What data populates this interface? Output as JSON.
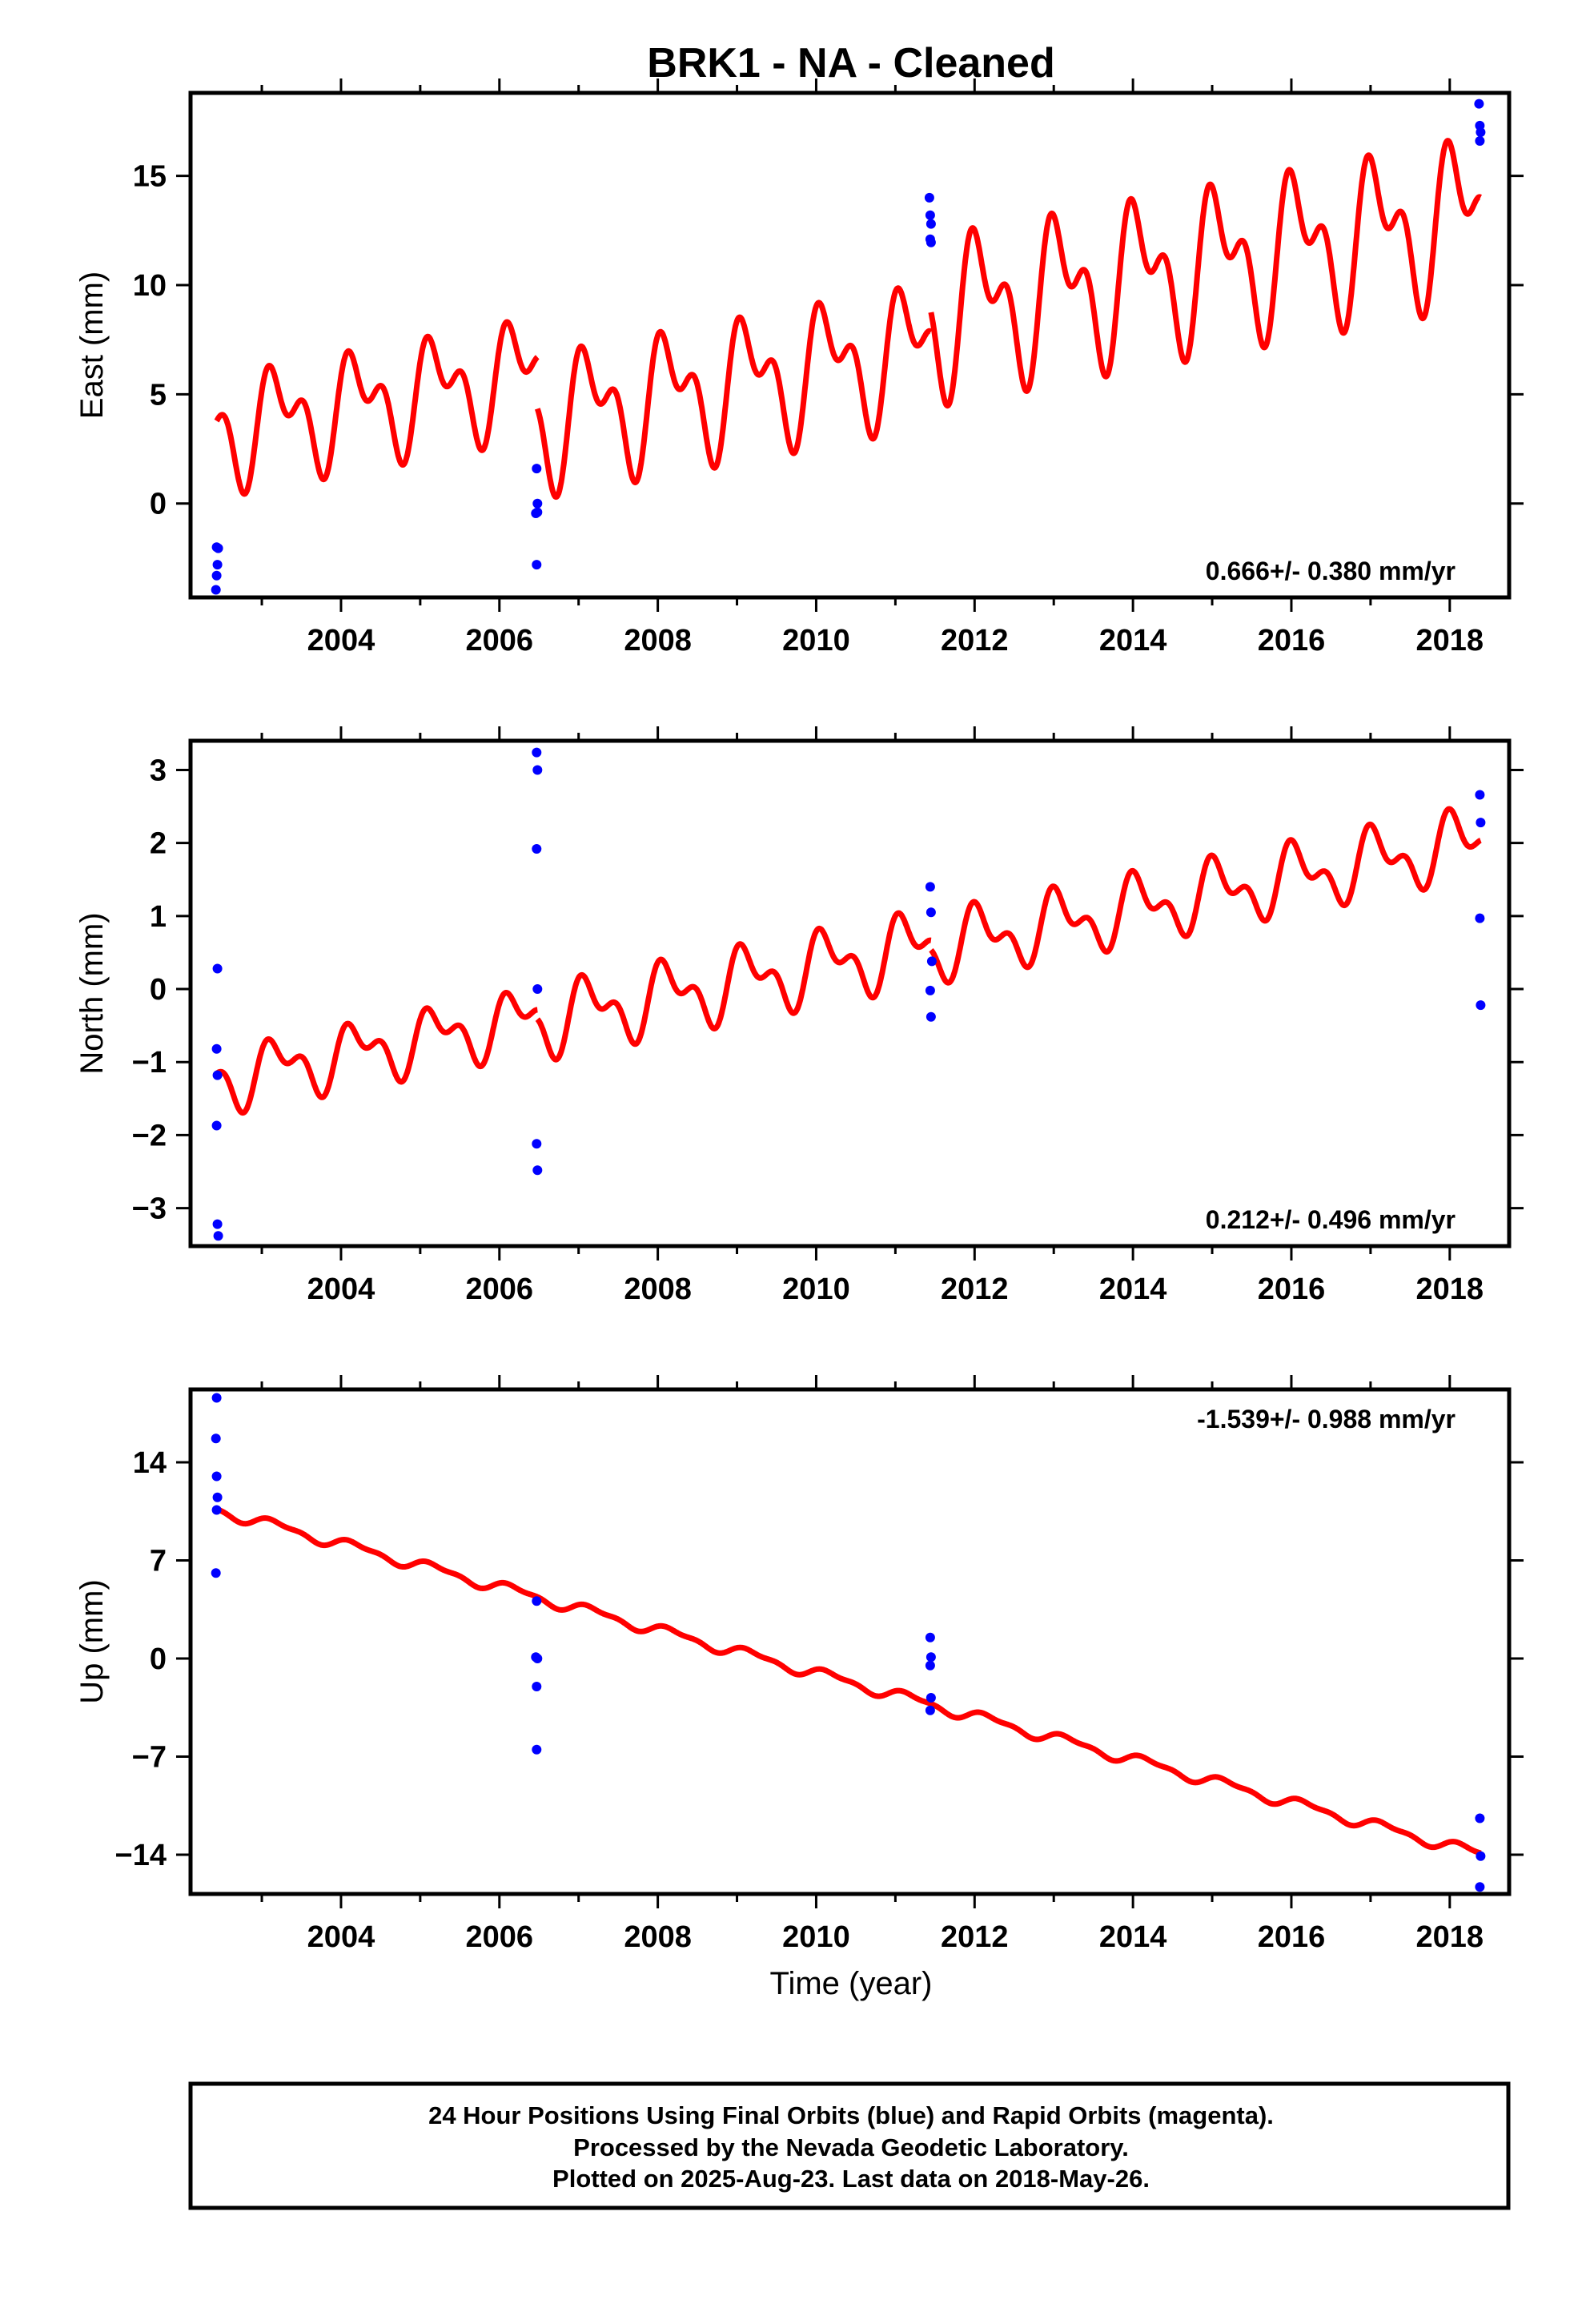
{
  "title": "BRK1  - NA - Cleaned",
  "xlabel": "Time (year)",
  "footer_lines": [
    "24 Hour Positions Using Final Orbits (blue) and Rapid Orbits (magenta).",
    "Processed by the Nevada Geodetic Laboratory.",
    "Plotted on 2025-Aug-23. Last data on 2018-May-26."
  ],
  "colors": {
    "data_points": "#0000ff",
    "model_line": "#ff0000",
    "frame": "#000000"
  },
  "chart_data": [
    {
      "type": "line",
      "ylabel": "East (mm)",
      "xlim": [
        2002.1,
        2018.75
      ],
      "ylim": [
        -4.3,
        18.8
      ],
      "xticks": [
        2004,
        2006,
        2008,
        2010,
        2012,
        2014,
        2016,
        2018
      ],
      "yticks": [
        0,
        5,
        10,
        15
      ],
      "rate": "0.666+/- 0.380 mm/yr",
      "rate_position": "bottom-right",
      "points": [
        [
          2002.43,
          -2.0
        ],
        [
          2002.45,
          -2.05
        ],
        [
          2002.44,
          -2.8
        ],
        [
          2002.43,
          -3.3
        ],
        [
          2002.42,
          -3.95
        ],
        [
          2006.47,
          1.6
        ],
        [
          2006.48,
          0.0
        ],
        [
          2006.48,
          -0.4
        ],
        [
          2006.46,
          -0.45
        ],
        [
          2006.47,
          -2.8
        ],
        [
          2011.43,
          14.0
        ],
        [
          2011.44,
          13.2
        ],
        [
          2011.45,
          12.8
        ],
        [
          2011.44,
          12.1
        ],
        [
          2011.45,
          11.95
        ],
        [
          2018.37,
          18.3
        ],
        [
          2018.38,
          17.3
        ],
        [
          2018.39,
          17.0
        ],
        [
          2018.38,
          16.6
        ]
      ],
      "model_segments": [
        {
          "x_start": 2002.43,
          "x_end": 2006.48,
          "y0": 3.3,
          "slope": 0.666,
          "a1": 1.9,
          "a2": 1.4,
          "p1": 0.2,
          "p2": 0.9
        },
        {
          "x_start": 2006.48,
          "x_end": 2011.45,
          "y0": 3.8,
          "slope": 0.666,
          "a1": 2.3,
          "a2": 1.6,
          "p1": 0.6,
          "p2": 1.7
        },
        {
          "x_start": 2011.45,
          "x_end": 2018.39,
          "y0": 8.6,
          "slope": 0.666,
          "a1": 2.7,
          "a2": 1.9,
          "p1": 1.0,
          "p2": 2.4
        }
      ]
    },
    {
      "type": "line",
      "ylabel": "North (mm)",
      "xlim": [
        2002.1,
        2018.75
      ],
      "ylim": [
        -3.52,
        3.4
      ],
      "xticks": [
        2004,
        2006,
        2008,
        2010,
        2012,
        2014,
        2016,
        2018
      ],
      "yticks": [
        -3,
        -2,
        -1,
        0,
        1,
        2,
        3
      ],
      "rate": "0.212+/- 0.496 mm/yr",
      "rate_position": "bottom-right",
      "points": [
        [
          2002.44,
          0.28
        ],
        [
          2002.43,
          -0.82
        ],
        [
          2002.44,
          -1.18
        ],
        [
          2002.43,
          -1.87
        ],
        [
          2002.44,
          -3.22
        ],
        [
          2002.45,
          -3.38
        ],
        [
          2006.47,
          3.24
        ],
        [
          2006.48,
          3.0
        ],
        [
          2006.47,
          1.92
        ],
        [
          2006.48,
          0.0
        ],
        [
          2006.47,
          -2.12
        ],
        [
          2006.48,
          -2.48
        ],
        [
          2011.44,
          1.4
        ],
        [
          2011.45,
          1.05
        ],
        [
          2011.46,
          0.38
        ],
        [
          2011.44,
          -0.02
        ],
        [
          2011.45,
          -0.38
        ],
        [
          2018.38,
          2.66
        ],
        [
          2018.39,
          2.28
        ],
        [
          2018.38,
          0.97
        ],
        [
          2018.39,
          -0.22
        ]
      ],
      "model_segments": [
        {
          "x_start": 2002.43,
          "x_end": 2006.48,
          "y0": -1.25,
          "slope": 0.212,
          "a1": 0.33,
          "a2": 0.22,
          "p1": 0.3,
          "p2": 1.1
        },
        {
          "x_start": 2006.48,
          "x_end": 2011.45,
          "y0": -0.45,
          "slope": 0.212,
          "a1": 0.38,
          "a2": 0.25,
          "p1": 0.7,
          "p2": 1.6
        },
        {
          "x_start": 2011.45,
          "x_end": 2018.39,
          "y0": 0.55,
          "slope": 0.212,
          "a1": 0.36,
          "a2": 0.24,
          "p1": 1.1,
          "p2": 2.1
        }
      ]
    },
    {
      "type": "line",
      "ylabel": "Up (mm)",
      "xlim": [
        2002.1,
        2018.75
      ],
      "ylim": [
        -16.8,
        19.2
      ],
      "xticks": [
        2004,
        2006,
        2008,
        2010,
        2012,
        2014,
        2016,
        2018
      ],
      "yticks": [
        -14,
        -7,
        0,
        7,
        14
      ],
      "rate": "-1.539+/- 0.988 mm/yr",
      "rate_position": "top-right",
      "points": [
        [
          2002.43,
          18.6
        ],
        [
          2002.42,
          15.7
        ],
        [
          2002.43,
          13.0
        ],
        [
          2002.44,
          11.5
        ],
        [
          2002.43,
          10.6
        ],
        [
          2002.42,
          6.1
        ],
        [
          2006.47,
          4.1
        ],
        [
          2006.46,
          0.1
        ],
        [
          2006.48,
          0.0
        ],
        [
          2006.47,
          -2.0
        ],
        [
          2006.47,
          -6.5
        ],
        [
          2011.44,
          1.5
        ],
        [
          2011.45,
          0.1
        ],
        [
          2011.44,
          -0.5
        ],
        [
          2011.45,
          -2.8
        ],
        [
          2011.44,
          -3.7
        ],
        [
          2018.38,
          -11.4
        ],
        [
          2018.39,
          -14.1
        ],
        [
          2018.38,
          -16.3
        ]
      ],
      "model_segments": [
        {
          "x_start": 2002.43,
          "x_end": 2018.39,
          "y0": 10.6,
          "slope": -1.539,
          "a1": 0.35,
          "a2": 0.15,
          "p1": 0.4,
          "p2": 1.2
        }
      ]
    }
  ]
}
